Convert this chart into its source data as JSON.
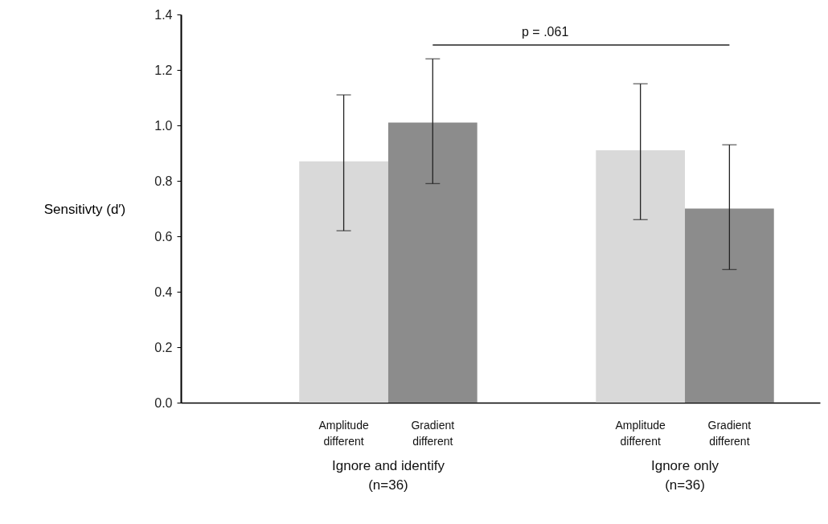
{
  "chart_data": {
    "type": "bar",
    "ylabel": "Sensitivty (d′)",
    "categories": [
      "Ignore and identify\n(n=36)",
      "Ignore only\n(n=36)"
    ],
    "series": [
      {
        "name": "Amplitude different",
        "color": "#d9d9d9",
        "values": [
          0.87,
          0.91
        ],
        "errors": [
          [
            0.62,
            1.11
          ],
          [
            0.66,
            1.15
          ]
        ]
      },
      {
        "name": "Gradient different",
        "color": "#8c8c8c",
        "values": [
          1.01,
          0.7
        ],
        "errors": [
          [
            0.79,
            1.24
          ],
          [
            0.48,
            0.93
          ]
        ]
      }
    ],
    "ylim": [
      0,
      1.4
    ],
    "yticks": [
      {
        "value": 0,
        "label": "0.0"
      },
      0.2,
      0.4,
      0.6,
      0.8,
      {
        "value": 1,
        "label": "1.0"
      },
      1.2,
      1.4
    ],
    "annotations": [
      "p = .061"
    ],
    "grid": false
  }
}
